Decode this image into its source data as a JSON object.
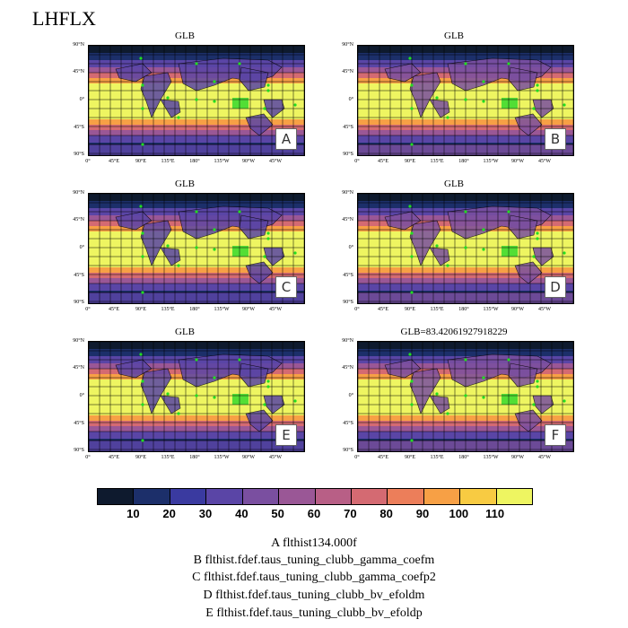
{
  "main_title": "LHFLX",
  "lat_ticks": [
    "90°N",
    "45°N",
    "0°",
    "45°S",
    "90°S"
  ],
  "lon_ticks": [
    "0°",
    "45°E",
    "90°E",
    "135°E",
    "180°",
    "135°W",
    "90°W",
    "45°W"
  ],
  "panels": [
    {
      "title": "GLB",
      "tag": "A"
    },
    {
      "title": "GLB",
      "tag": "B"
    },
    {
      "title": "GLB",
      "tag": "C"
    },
    {
      "title": "GLB",
      "tag": "D"
    },
    {
      "title": "GLB",
      "tag": "E"
    },
    {
      "title": "GLB=83.42061927918229",
      "tag": "F"
    }
  ],
  "colorbar": {
    "colors": [
      "#0e1a2e",
      "#1c2f6a",
      "#3a3aa0",
      "#5a45a6",
      "#7a4fa0",
      "#9a5796",
      "#b85f86",
      "#d46a72",
      "#ec7e5a",
      "#f7a045",
      "#f8cb42",
      "#eef561"
    ],
    "labels": [
      "10",
      "20",
      "30",
      "40",
      "50",
      "60",
      "70",
      "80",
      "90",
      "100",
      "110"
    ]
  },
  "legend": [
    "A  flthist134.000f",
    "B  flthist.fdef.taus_tuning_clubb_gamma_coefm",
    "C  flthist.fdef.taus_tuning_clubb_gamma_coefp2",
    "D  flthist.fdef.taus_tuning_clubb_bv_efoldm",
    "E  flthist.fdef.taus_tuning_clubb_bv_efoldp"
  ]
}
